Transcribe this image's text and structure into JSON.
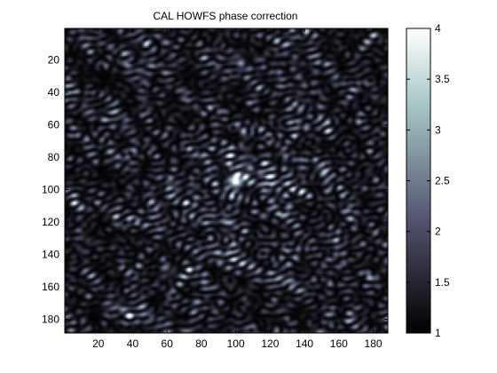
{
  "chart_data": [
    {
      "type": "heatmap",
      "title": "CAL HOWFS phase correction",
      "colormap": "bone",
      "description_points": {
        "peak_center": [
          100,
          95
        ],
        "peak_value": 4,
        "background_range": [
          1,
          2.3
        ]
      },
      "xlim": [
        1,
        188
      ],
      "ylim": [
        1,
        188
      ],
      "y_reversed": true,
      "xticks": [
        20,
        40,
        60,
        80,
        100,
        120,
        140,
        160,
        180
      ],
      "yticks": [
        20,
        40,
        60,
        80,
        100,
        120,
        140,
        160,
        180
      ],
      "xticklabels": [
        "20",
        "40",
        "60",
        "80",
        "100",
        "120",
        "140",
        "160",
        "180"
      ],
      "yticklabels": [
        "20",
        "40",
        "60",
        "80",
        "100",
        "120",
        "140",
        "160",
        "180"
      ],
      "colorbar": {
        "clim": [
          1,
          4
        ],
        "ticks": [
          1,
          1.5,
          2,
          2.5,
          3,
          3.5,
          4
        ],
        "ticklabels": [
          "1",
          "1.5",
          "2",
          "2.5",
          "3",
          "3.5",
          "4"
        ]
      },
      "grid": false,
      "legend": "none"
    }
  ]
}
